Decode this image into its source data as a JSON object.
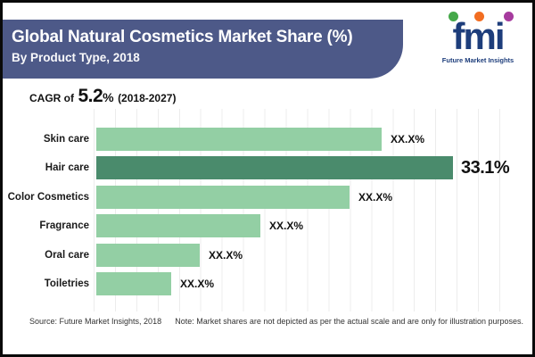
{
  "header": {
    "title": "Global Natural Cosmetics Market Share (%)",
    "subtitle": "By Product Type, 2018"
  },
  "logo": {
    "text": "fmi",
    "tagline": "Future Market Insights"
  },
  "cagr": {
    "prefix": "CAGR of",
    "value": "5.2",
    "percent_sign": "%",
    "period": "(2018-2027)"
  },
  "chart_data": {
    "type": "bar",
    "orientation": "horizontal",
    "title": "Global Natural Cosmetics Market Share (%), By Product Type, 2018",
    "categories": [
      "Skin care",
      "Hair care",
      "Color Cosmetics",
      "Fragrance",
      "Oral care",
      "Toiletries"
    ],
    "value_labels": [
      "XX.X%",
      "33.1%",
      "XX.X%",
      "XX.X%",
      "XX.X%",
      "XX.X%"
    ],
    "values_pct": [
      null,
      33.1,
      null,
      null,
      null,
      null
    ],
    "relative_bar_lengths": [
      0.8,
      1.0,
      0.71,
      0.46,
      0.29,
      0.21
    ],
    "highlight_index": 1,
    "grid": "vertical-lines-only",
    "legend": "none",
    "note": "Bar lengths are illustrative, not to scale"
  },
  "footer": {
    "source": "Source: Future Market Insights, 2018",
    "note": "Note: Market shares are not depicted as per the actual scale and are only for illustration purposes."
  },
  "colors": {
    "banner_bg": "#4d5988",
    "bar_light": "#93cfa4",
    "bar_dark": "#4a8b6c",
    "logo_navy": "#1d3d7b",
    "dot_green": "#45a849",
    "dot_orange": "#f26d21",
    "dot_purple": "#a63b9e",
    "grid_line": "#ececec"
  }
}
